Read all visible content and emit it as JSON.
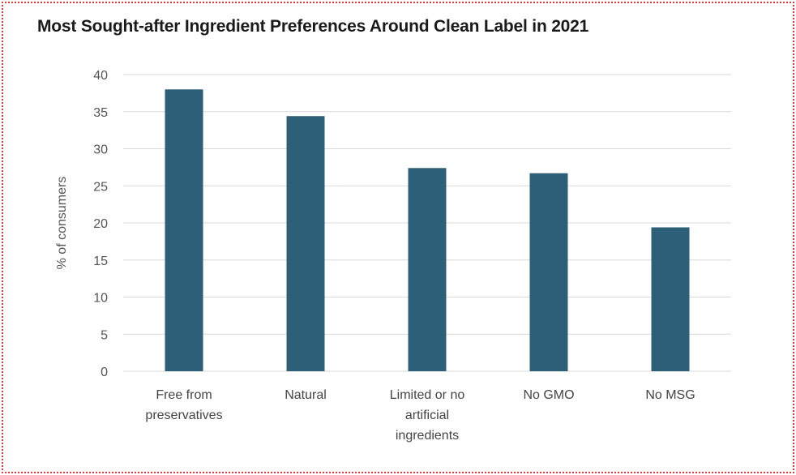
{
  "chart_data": {
    "type": "bar",
    "title": "Most Sought-after Ingredient Preferences Around Clean Label in 2021",
    "xlabel": "",
    "ylabel": "% of consumers",
    "ylim": [
      0,
      40
    ],
    "yticks": [
      0,
      5,
      10,
      15,
      20,
      25,
      30,
      35,
      40
    ],
    "categories": [
      [
        "Free from",
        "preservatives"
      ],
      [
        "Natural"
      ],
      [
        "Limited or no",
        "artificial",
        "ingredients"
      ],
      [
        "No GMO"
      ],
      [
        "No MSG"
      ]
    ],
    "values": [
      38,
      34.4,
      27.4,
      26.7,
      19.4
    ],
    "bar_color": "#2e5f78",
    "grid": true,
    "grid_color": "#d9d9d9",
    "legend": false
  }
}
